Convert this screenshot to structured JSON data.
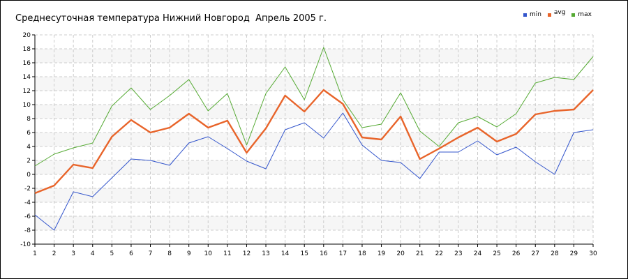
{
  "chart_data": {
    "type": "line",
    "title": "Среднесуточная температура Нижний Новгород  Апрель 2005 г.",
    "xlabel": "",
    "ylabel": "",
    "x": [
      1,
      2,
      3,
      4,
      5,
      6,
      7,
      8,
      9,
      10,
      11,
      12,
      13,
      14,
      15,
      16,
      17,
      18,
      19,
      20,
      21,
      22,
      23,
      24,
      25,
      26,
      27,
      28,
      29,
      30
    ],
    "ylim": [
      -10,
      20
    ],
    "yticks": [
      -10,
      -8,
      -6,
      -4,
      -2,
      0,
      2,
      4,
      6,
      8,
      10,
      12,
      14,
      16,
      18,
      20
    ],
    "grid": true,
    "legend_position": "top-right",
    "series": [
      {
        "name": "min",
        "color": "#3355cc",
        "values": [
          -5.8,
          -8.0,
          -2.5,
          -3.2,
          -0.5,
          2.2,
          2.0,
          1.3,
          4.5,
          5.4,
          3.7,
          1.9,
          0.8,
          6.4,
          7.4,
          5.2,
          8.8,
          4.2,
          2.0,
          1.7,
          -0.6,
          3.2,
          3.2,
          4.8,
          2.8,
          3.9,
          1.8,
          0.0,
          6.0,
          6.4
        ]
      },
      {
        "name": "avg",
        "color": "#e8642a",
        "values": [
          -2.7,
          -1.6,
          1.4,
          0.9,
          5.4,
          7.8,
          6.0,
          6.7,
          8.7,
          6.7,
          7.7,
          3.1,
          6.6,
          11.3,
          9.0,
          12.1,
          10.1,
          5.3,
          5.0,
          8.3,
          2.2,
          3.7,
          5.3,
          6.7,
          4.7,
          5.8,
          8.6,
          9.1,
          9.3,
          12.1
        ]
      },
      {
        "name": "max",
        "color": "#55aa33",
        "values": [
          1.2,
          2.9,
          3.8,
          4.5,
          9.8,
          12.4,
          9.3,
          11.3,
          13.6,
          9.1,
          11.6,
          4.2,
          11.6,
          15.4,
          10.7,
          18.2,
          10.7,
          6.7,
          7.2,
          11.7,
          6.2,
          4.0,
          7.4,
          8.3,
          6.8,
          8.7,
          13.1,
          13.9,
          13.6,
          16.9
        ]
      }
    ]
  }
}
